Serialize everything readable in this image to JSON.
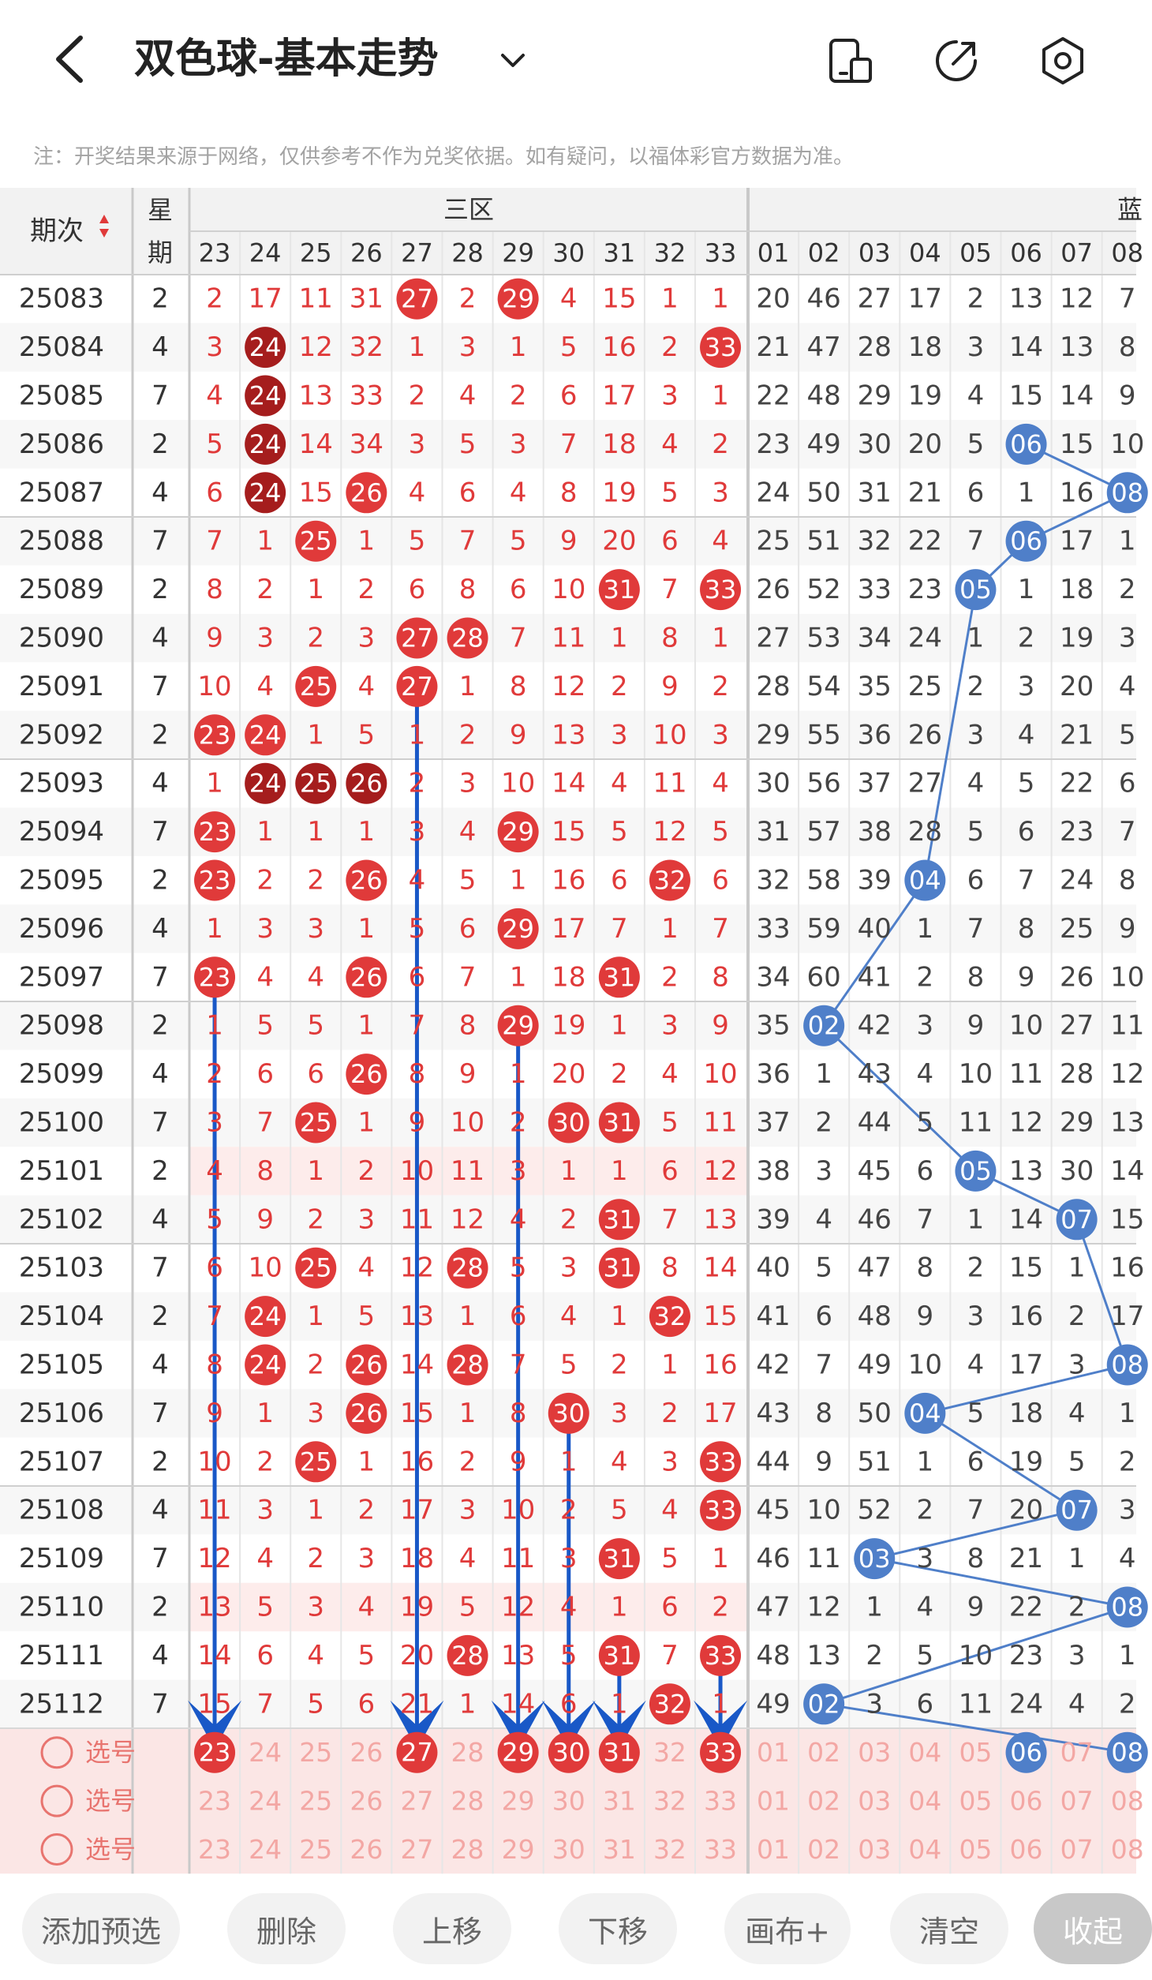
{
  "header": {
    "title": "双色球-基本走势",
    "notice": "注：开奖结果来源于网络，仅供参考不作为兑奖依据。如有疑问，以福体彩官方数据为准。"
  },
  "table": {
    "period_header": "期次",
    "weekday_header": "星期",
    "zone_label": "三区",
    "zone_label_next": "蓝",
    "red_columns": [
      "23",
      "24",
      "25",
      "26",
      "27",
      "28",
      "29",
      "30",
      "31",
      "32",
      "33"
    ],
    "blue_columns": [
      "01",
      "02",
      "03",
      "04",
      "05",
      "06",
      "07",
      "08"
    ],
    "rows": [
      {
        "period": "25083",
        "weekday": "2",
        "red": [
          "2",
          "17",
          "11",
          "31",
          "27",
          "2",
          "29",
          "4",
          "15",
          "1",
          "1"
        ],
        "blue": [
          "20",
          "46",
          "27",
          "17",
          "2",
          "13",
          "12",
          "7"
        ]
      },
      {
        "period": "25084",
        "weekday": "4",
        "red": [
          "3",
          "24",
          "12",
          "32",
          "1",
          "3",
          "1",
          "5",
          "16",
          "2",
          "33"
        ],
        "blue": [
          "21",
          "47",
          "28",
          "18",
          "3",
          "14",
          "13",
          "8"
        ]
      },
      {
        "period": "25085",
        "weekday": "7",
        "red": [
          "4",
          "24",
          "13",
          "33",
          "2",
          "4",
          "2",
          "6",
          "17",
          "3",
          "1"
        ],
        "blue": [
          "22",
          "48",
          "29",
          "19",
          "4",
          "15",
          "14",
          "9"
        ]
      },
      {
        "period": "25086",
        "weekday": "2",
        "red": [
          "5",
          "24",
          "14",
          "34",
          "3",
          "5",
          "3",
          "7",
          "18",
          "4",
          "2"
        ],
        "blue": [
          "23",
          "49",
          "30",
          "20",
          "5",
          "06",
          "15",
          "10"
        ]
      },
      {
        "period": "25087",
        "weekday": "4",
        "red": [
          "6",
          "24",
          "15",
          "26",
          "4",
          "6",
          "4",
          "8",
          "19",
          "5",
          "3"
        ],
        "blue": [
          "24",
          "50",
          "31",
          "21",
          "6",
          "1",
          "16",
          "08"
        ]
      },
      {
        "period": "25088",
        "weekday": "7",
        "red": [
          "7",
          "1",
          "25",
          "1",
          "5",
          "7",
          "5",
          "9",
          "20",
          "6",
          "4"
        ],
        "blue": [
          "25",
          "51",
          "32",
          "22",
          "7",
          "06",
          "17",
          "1"
        ]
      },
      {
        "period": "25089",
        "weekday": "2",
        "red": [
          "8",
          "2",
          "1",
          "2",
          "6",
          "8",
          "6",
          "10",
          "31",
          "7",
          "33"
        ],
        "blue": [
          "26",
          "52",
          "33",
          "23",
          "05",
          "1",
          "18",
          "2"
        ]
      },
      {
        "period": "25090",
        "weekday": "4",
        "red": [
          "9",
          "3",
          "2",
          "3",
          "27",
          "28",
          "7",
          "11",
          "1",
          "8",
          "1"
        ],
        "blue": [
          "27",
          "53",
          "34",
          "24",
          "1",
          "2",
          "19",
          "3"
        ]
      },
      {
        "period": "25091",
        "weekday": "7",
        "red": [
          "10",
          "4",
          "25",
          "4",
          "27",
          "1",
          "8",
          "12",
          "2",
          "9",
          "2"
        ],
        "blue": [
          "28",
          "54",
          "35",
          "25",
          "2",
          "3",
          "20",
          "4"
        ]
      },
      {
        "period": "25092",
        "weekday": "2",
        "red": [
          "23",
          "24",
          "1",
          "5",
          "1",
          "2",
          "9",
          "13",
          "3",
          "10",
          "3"
        ],
        "blue": [
          "29",
          "55",
          "36",
          "26",
          "3",
          "4",
          "21",
          "5"
        ]
      },
      {
        "period": "25093",
        "weekday": "4",
        "red": [
          "1",
          "24",
          "25",
          "26",
          "2",
          "3",
          "10",
          "14",
          "4",
          "11",
          "4"
        ],
        "blue": [
          "30",
          "56",
          "37",
          "27",
          "4",
          "5",
          "22",
          "6"
        ]
      },
      {
        "period": "25094",
        "weekday": "7",
        "red": [
          "23",
          "1",
          "1",
          "1",
          "3",
          "4",
          "29",
          "15",
          "5",
          "12",
          "5"
        ],
        "blue": [
          "31",
          "57",
          "38",
          "28",
          "5",
          "6",
          "23",
          "7"
        ]
      },
      {
        "period": "25095",
        "weekday": "2",
        "red": [
          "23",
          "2",
          "2",
          "26",
          "4",
          "5",
          "1",
          "16",
          "6",
          "32",
          "6"
        ],
        "blue": [
          "32",
          "58",
          "39",
          "04",
          "6",
          "7",
          "24",
          "8"
        ]
      },
      {
        "period": "25096",
        "weekday": "4",
        "red": [
          "1",
          "3",
          "3",
          "1",
          "5",
          "6",
          "29",
          "17",
          "7",
          "1",
          "7"
        ],
        "blue": [
          "33",
          "59",
          "40",
          "1",
          "7",
          "8",
          "25",
          "9"
        ]
      },
      {
        "period": "25097",
        "weekday": "7",
        "red": [
          "23",
          "4",
          "4",
          "26",
          "6",
          "7",
          "1",
          "18",
          "31",
          "2",
          "8"
        ],
        "blue": [
          "34",
          "60",
          "41",
          "2",
          "8",
          "9",
          "26",
          "10"
        ]
      },
      {
        "period": "25098",
        "weekday": "2",
        "red": [
          "1",
          "5",
          "5",
          "1",
          "7",
          "8",
          "29",
          "19",
          "1",
          "3",
          "9"
        ],
        "blue": [
          "35",
          "02",
          "42",
          "3",
          "9",
          "10",
          "27",
          "11"
        ]
      },
      {
        "period": "25099",
        "weekday": "4",
        "red": [
          "2",
          "6",
          "6",
          "26",
          "8",
          "9",
          "1",
          "20",
          "2",
          "4",
          "10"
        ],
        "blue": [
          "36",
          "1",
          "43",
          "4",
          "10",
          "11",
          "28",
          "12"
        ]
      },
      {
        "period": "25100",
        "weekday": "7",
        "red": [
          "3",
          "7",
          "25",
          "1",
          "9",
          "10",
          "2",
          "30",
          "31",
          "5",
          "11"
        ],
        "blue": [
          "37",
          "2",
          "44",
          "5",
          "11",
          "12",
          "29",
          "13"
        ]
      },
      {
        "period": "25101",
        "weekday": "2",
        "red": [
          "4",
          "8",
          "1",
          "2",
          "10",
          "11",
          "3",
          "1",
          "1",
          "6",
          "12"
        ],
        "blue": [
          "38",
          "3",
          "45",
          "6",
          "05",
          "13",
          "30",
          "14"
        ]
      },
      {
        "period": "25102",
        "weekday": "4",
        "red": [
          "5",
          "9",
          "2",
          "3",
          "11",
          "12",
          "4",
          "2",
          "31",
          "7",
          "13"
        ],
        "blue": [
          "39",
          "4",
          "46",
          "7",
          "1",
          "14",
          "07",
          "15"
        ]
      },
      {
        "period": "25103",
        "weekday": "7",
        "red": [
          "6",
          "10",
          "25",
          "4",
          "12",
          "28",
          "5",
          "3",
          "31",
          "8",
          "14"
        ],
        "blue": [
          "40",
          "5",
          "47",
          "8",
          "2",
          "15",
          "1",
          "16"
        ]
      },
      {
        "period": "25104",
        "weekday": "2",
        "red": [
          "7",
          "24",
          "1",
          "5",
          "13",
          "1",
          "6",
          "4",
          "1",
          "32",
          "15"
        ],
        "blue": [
          "41",
          "6",
          "48",
          "9",
          "3",
          "16",
          "2",
          "17"
        ]
      },
      {
        "period": "25105",
        "weekday": "4",
        "red": [
          "8",
          "24",
          "2",
          "26",
          "14",
          "28",
          "7",
          "5",
          "2",
          "1",
          "16"
        ],
        "blue": [
          "42",
          "7",
          "49",
          "10",
          "4",
          "17",
          "3",
          "08"
        ]
      },
      {
        "period": "25106",
        "weekday": "7",
        "red": [
          "9",
          "1",
          "3",
          "26",
          "15",
          "1",
          "8",
          "30",
          "3",
          "2",
          "17"
        ],
        "blue": [
          "43",
          "8",
          "50",
          "04",
          "5",
          "18",
          "4",
          "1"
        ]
      },
      {
        "period": "25107",
        "weekday": "2",
        "red": [
          "10",
          "2",
          "25",
          "1",
          "16",
          "2",
          "9",
          "1",
          "4",
          "3",
          "33"
        ],
        "blue": [
          "44",
          "9",
          "51",
          "1",
          "6",
          "19",
          "5",
          "2"
        ]
      },
      {
        "period": "25108",
        "weekday": "4",
        "red": [
          "11",
          "3",
          "1",
          "2",
          "17",
          "3",
          "10",
          "2",
          "5",
          "4",
          "33"
        ],
        "blue": [
          "45",
          "10",
          "52",
          "2",
          "7",
          "20",
          "07",
          "3"
        ]
      },
      {
        "period": "25109",
        "weekday": "7",
        "red": [
          "12",
          "4",
          "2",
          "3",
          "18",
          "4",
          "11",
          "3",
          "31",
          "5",
          "1"
        ],
        "blue": [
          "46",
          "11",
          "03",
          "3",
          "8",
          "21",
          "1",
          "4"
        ]
      },
      {
        "period": "25110",
        "weekday": "2",
        "red": [
          "13",
          "5",
          "3",
          "4",
          "19",
          "5",
          "12",
          "4",
          "1",
          "6",
          "2"
        ],
        "blue": [
          "47",
          "12",
          "1",
          "4",
          "9",
          "22",
          "2",
          "08"
        ]
      },
      {
        "period": "25111",
        "weekday": "4",
        "red": [
          "14",
          "6",
          "4",
          "5",
          "20",
          "28",
          "13",
          "5",
          "31",
          "7",
          "33"
        ],
        "blue": [
          "48",
          "13",
          "2",
          "5",
          "10",
          "23",
          "3",
          "1"
        ]
      },
      {
        "period": "25112",
        "weekday": "7",
        "red": [
          "15",
          "7",
          "5",
          "6",
          "21",
          "1",
          "14",
          "6",
          "1",
          "32",
          "1"
        ],
        "blue": [
          "49",
          "02",
          "3",
          "6",
          "11",
          "24",
          "4",
          "2"
        ]
      }
    ],
    "select_label": "选号",
    "pick_rows": [
      {
        "red": [
          "23",
          "24",
          "25",
          "26",
          "27",
          "28",
          "29",
          "30",
          "31",
          "32",
          "33"
        ],
        "blue": [
          "01",
          "02",
          "03",
          "04",
          "05",
          "06",
          "07",
          "08"
        ]
      },
      {
        "red": [
          "23",
          "24",
          "25",
          "26",
          "27",
          "28",
          "29",
          "30",
          "31",
          "32",
          "33"
        ],
        "blue": [
          "01",
          "02",
          "03",
          "04",
          "05",
          "06",
          "07",
          "08"
        ]
      },
      {
        "red": [
          "23",
          "24",
          "25",
          "26",
          "27",
          "28",
          "29",
          "30",
          "31",
          "32",
          "33"
        ],
        "blue": [
          "01",
          "02",
          "03",
          "04",
          "05",
          "06",
          "07",
          "08"
        ]
      }
    ],
    "pick_red_selected": [
      "23",
      "27",
      "29",
      "30",
      "31",
      "33"
    ],
    "pick_blue_selected": [
      "06",
      "08"
    ],
    "red_hits": {
      "25083": [
        "27",
        "29"
      ],
      "25084": [
        "24",
        "33"
      ],
      "25085": [
        "24"
      ],
      "25086": [
        "24"
      ],
      "25087": [
        "24",
        "26"
      ],
      "25088": [
        "25"
      ],
      "25089": [
        "31",
        "33"
      ],
      "25090": [
        "27",
        "28"
      ],
      "25091": [
        "25",
        "27"
      ],
      "25092": [
        "23",
        "24"
      ],
      "25093": [
        "24",
        "25",
        "26"
      ],
      "25094": [
        "23",
        "29"
      ],
      "25095": [
        "23",
        "26",
        "32"
      ],
      "25096": [
        "29"
      ],
      "25097": [
        "23",
        "26",
        "31"
      ],
      "25098": [
        "29"
      ],
      "25099": [
        "26"
      ],
      "25100": [
        "25",
        "30",
        "31"
      ],
      "25101": [],
      "25102": [
        "31"
      ],
      "25103": [
        "25",
        "28",
        "31"
      ],
      "25104": [
        "24",
        "32"
      ],
      "25105": [
        "24",
        "26",
        "28"
      ],
      "25106": [
        "26",
        "30"
      ],
      "25107": [
        "25",
        "33"
      ],
      "25108": [
        "33"
      ],
      "25109": [
        "31"
      ],
      "25110": [],
      "25111": [
        "28",
        "31",
        "33"
      ],
      "25112": [
        "32"
      ]
    },
    "dark_hits": {
      "25084": [
        "24"
      ],
      "25085": [
        "24"
      ],
      "25086": [
        "24"
      ],
      "25087": [
        "24"
      ],
      "25093": [
        "24",
        "25",
        "26"
      ]
    },
    "blue_hits": {
      "25086": "06",
      "25087": "08",
      "25088": "06",
      "25089": "05",
      "25095": "04",
      "25098": "02",
      "25101": "05",
      "25102": "07",
      "25105": "08",
      "25106": "04",
      "25108": "07",
      "25109": "03",
      "25110": "08",
      "25112": "02"
    },
    "arrow_columns": [
      "23",
      "27",
      "29",
      "30",
      "31",
      "33"
    ],
    "colors": {
      "red": "#e03a3a",
      "dark_red": "#a51d1d",
      "blue": "#4f7fc9",
      "arrow": "#1958c7",
      "grid": "#e6e6e6",
      "highlight_bg": "#fdeceb",
      "pick_bg": "#fbe6e5",
      "header_bg": "#f2f2f2"
    }
  },
  "toolbar": {
    "add": "添加预选",
    "delete": "删除",
    "up": "上移",
    "down": "下移",
    "canvas": "画布+",
    "clear": "清空",
    "collapse": "收起"
  }
}
